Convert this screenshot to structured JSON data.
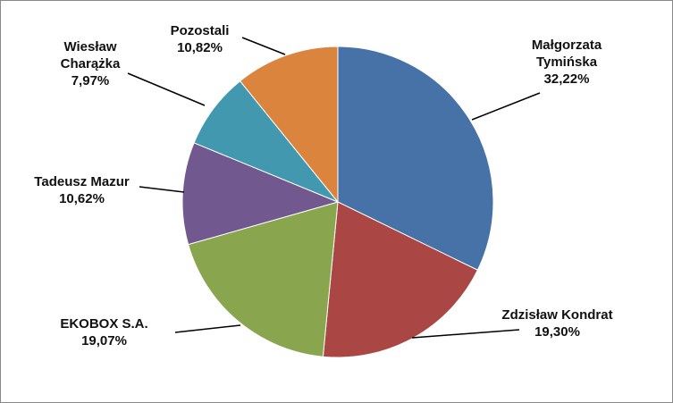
{
  "chart_data": {
    "type": "pie",
    "categories": [
      "Małgorzata Tymińska",
      "Zdzisław Kondrat",
      "EKOBOX S.A.",
      "Tadeusz Mazur",
      "Wiesław Charążka",
      "Pozostali"
    ],
    "values": [
      32.22,
      19.3,
      19.07,
      10.62,
      7.97,
      10.82
    ],
    "value_labels": [
      "32,22%",
      "19,30%",
      "19,07%",
      "10,62%",
      "7,97%",
      "10,82%"
    ],
    "colors": [
      "#4672a8",
      "#aa4644",
      "#89a54e",
      "#71588f",
      "#4198af",
      "#db843d"
    ]
  }
}
